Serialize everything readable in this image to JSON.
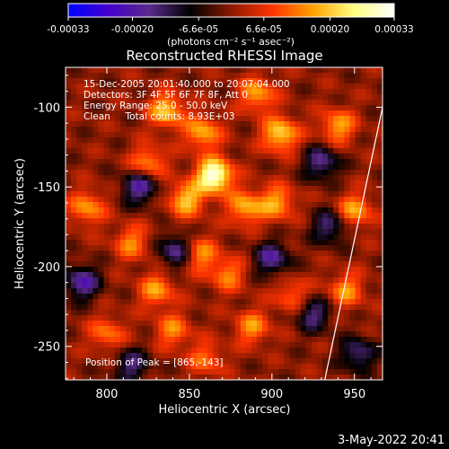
{
  "chart_data": {
    "type": "heatmap",
    "title": "Reconstructed RHESSI Image",
    "xlabel": "Heliocentric X (arcsec)",
    "ylabel": "Heliocentric Y (arcsec)",
    "xlim": [
      775,
      967
    ],
    "ylim": [
      -271,
      -75
    ],
    "x_ticks": [
      "800",
      "850",
      "900",
      "950"
    ],
    "x_tick_values": [
      800,
      850,
      900,
      950
    ],
    "y_ticks": [
      "-100",
      "-150",
      "-200",
      "-250"
    ],
    "y_tick_values": [
      -100,
      -150,
      -200,
      -250
    ],
    "annotations": [
      "15-Dec-2005 20:01:40.000 to 20:07:04.000",
      "Detectors: 3F 4F 5F 6F 7F 8F, Att 0",
      "Energy Range: 25.0 - 50.0 keV",
      "Clean     Total counts: 8.93E+03"
    ],
    "peak_label": "Position of Peak = [865,-143]",
    "peak": [
      865,
      -143
    ],
    "colorbar": {
      "ticks": [
        "-0.00033",
        "-0.00020",
        "-6.6e-05",
        "6.6e-05",
        "0.00020",
        "0.00033"
      ],
      "tick_values": [
        -0.00033,
        -0.0002,
        -6.6e-05,
        6.6e-05,
        0.0002,
        0.00033
      ],
      "range": [
        -0.00033,
        0.00033
      ],
      "units": "(photons cm⁻² s⁻¹ asec⁻²)",
      "colors": [
        "#0000ff",
        "#4400cc",
        "#5a2a8a",
        "#000000",
        "#8b1a00",
        "#ff3300",
        "#ffa000",
        "#ffff80",
        "#ffffff"
      ]
    },
    "hot_spots": [
      {
        "x": 865,
        "y": -143,
        "value": 0.00033
      },
      {
        "x": 836,
        "y": -102,
        "value": 0.0002
      },
      {
        "x": 858,
        "y": -116,
        "value": 0.00018
      },
      {
        "x": 891,
        "y": -92,
        "value": 0.00017
      },
      {
        "x": 905,
        "y": -117,
        "value": 0.00022
      },
      {
        "x": 940,
        "y": -112,
        "value": 0.00017
      },
      {
        "x": 825,
        "y": -135,
        "value": 0.00016
      },
      {
        "x": 848,
        "y": -158,
        "value": 0.0002
      },
      {
        "x": 884,
        "y": -163,
        "value": 0.00018
      },
      {
        "x": 903,
        "y": -160,
        "value": 0.00017
      },
      {
        "x": 788,
        "y": -163,
        "value": 0.00016
      },
      {
        "x": 815,
        "y": -185,
        "value": 0.00014
      },
      {
        "x": 856,
        "y": -192,
        "value": 0.00016
      },
      {
        "x": 873,
        "y": -205,
        "value": 0.00014
      },
      {
        "x": 950,
        "y": -165,
        "value": 0.00017
      },
      {
        "x": 945,
        "y": -215,
        "value": 0.00015
      },
      {
        "x": 830,
        "y": -215,
        "value": 0.00016
      },
      {
        "x": 840,
        "y": -240,
        "value": 0.00014
      },
      {
        "x": 888,
        "y": -238,
        "value": 0.00015
      },
      {
        "x": 912,
        "y": -218,
        "value": 0.00012
      },
      {
        "x": 800,
        "y": -242,
        "value": 0.00013
      },
      {
        "x": 860,
        "y": -258,
        "value": 0.00012
      }
    ],
    "cold_spots": [
      {
        "x": 820,
        "y": -150,
        "value": -0.0002
      },
      {
        "x": 785,
        "y": -210,
        "value": -0.0002
      },
      {
        "x": 842,
        "y": -190,
        "value": -0.00018
      },
      {
        "x": 930,
        "y": -135,
        "value": -0.00017
      },
      {
        "x": 935,
        "y": -175,
        "value": -0.00016
      },
      {
        "x": 900,
        "y": -195,
        "value": -0.00018
      },
      {
        "x": 925,
        "y": -230,
        "value": -0.00016
      },
      {
        "x": 815,
        "y": -262,
        "value": -0.00015
      },
      {
        "x": 952,
        "y": -255,
        "value": -0.00016
      }
    ],
    "limb_line": [
      [
        932,
        -271
      ],
      [
        967,
        -100
      ]
    ]
  },
  "footer": {
    "date": "3-May-2022 20:41"
  },
  "style": {
    "axis_color": "#ffffff",
    "background": "#000000"
  }
}
